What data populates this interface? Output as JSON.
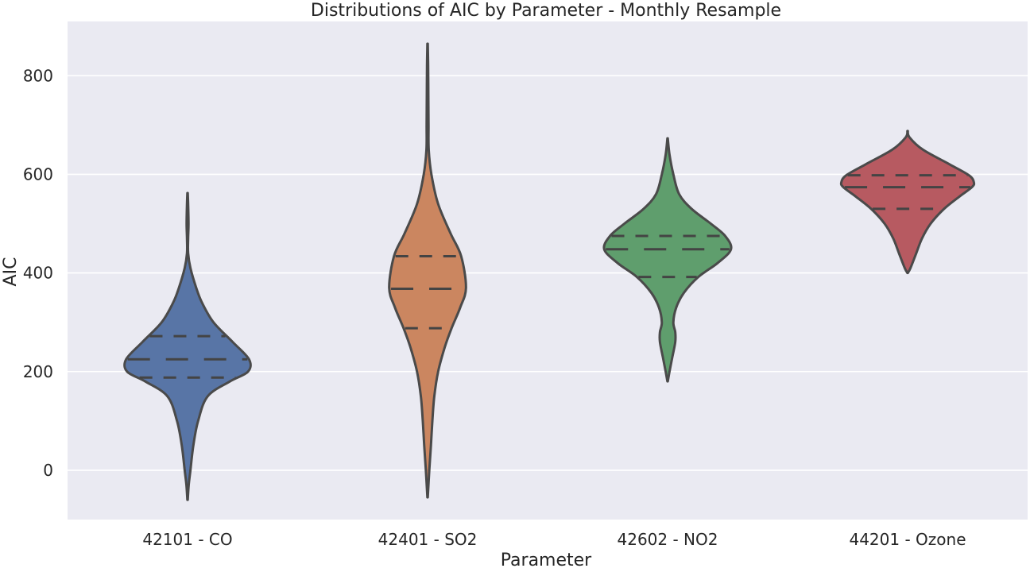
{
  "chart_data": {
    "type": "violin",
    "title": "Distributions of AIC by Parameter - Monthly Resample",
    "xlabel": "Parameter",
    "ylabel": "AIC",
    "ylim": [
      -100,
      910
    ],
    "yticks": [
      0,
      200,
      400,
      600,
      800
    ],
    "grid": true,
    "categories": [
      "42101 - CO",
      "42401 - SO2",
      "42602 - NO2",
      "44201 - Ozone"
    ],
    "colors": [
      "#5875a6",
      "#cb8660",
      "#5f9e6d",
      "#b75a61"
    ],
    "series": [
      {
        "quartiles": [
          188,
          225,
          272
        ],
        "min": -60,
        "max": 562,
        "profile": [
          [
            562,
            0.002
          ],
          [
            540,
            0.006
          ],
          [
            500,
            0.01
          ],
          [
            470,
            0.006
          ],
          [
            440,
            0.006
          ],
          [
            410,
            0.03
          ],
          [
            370,
            0.09
          ],
          [
            340,
            0.15
          ],
          [
            300,
            0.27
          ],
          [
            260,
            0.47
          ],
          [
            225,
            0.64
          ],
          [
            200,
            0.63
          ],
          [
            180,
            0.44
          ],
          [
            150,
            0.21
          ],
          [
            100,
            0.11
          ],
          [
            50,
            0.06
          ],
          [
            0,
            0.03
          ],
          [
            -30,
            0.012
          ],
          [
            -60,
            0.002
          ]
        ]
      },
      {
        "quartiles": [
          288,
          368,
          434
        ],
        "min": -55,
        "max": 865,
        "profile": [
          [
            865,
            0.002
          ],
          [
            820,
            0.006
          ],
          [
            760,
            0.008
          ],
          [
            700,
            0.01
          ],
          [
            650,
            0.012
          ],
          [
            600,
            0.04
          ],
          [
            540,
            0.11
          ],
          [
            480,
            0.24
          ],
          [
            434,
            0.35
          ],
          [
            370,
            0.4
          ],
          [
            330,
            0.34
          ],
          [
            288,
            0.25
          ],
          [
            250,
            0.18
          ],
          [
            200,
            0.11
          ],
          [
            150,
            0.07
          ],
          [
            100,
            0.05
          ],
          [
            50,
            0.035
          ],
          [
            0,
            0.018
          ],
          [
            -55,
            0.002
          ]
        ]
      },
      {
        "quartiles": [
          392,
          448,
          475
        ],
        "min": 180,
        "max": 673,
        "profile": [
          [
            673,
            0.002
          ],
          [
            640,
            0.02
          ],
          [
            600,
            0.06
          ],
          [
            560,
            0.12
          ],
          [
            530,
            0.25
          ],
          [
            500,
            0.45
          ],
          [
            475,
            0.6
          ],
          [
            448,
            0.66
          ],
          [
            420,
            0.52
          ],
          [
            392,
            0.32
          ],
          [
            360,
            0.17
          ],
          [
            330,
            0.09
          ],
          [
            300,
            0.06
          ],
          [
            280,
            0.08
          ],
          [
            260,
            0.08
          ],
          [
            230,
            0.05
          ],
          [
            200,
            0.02
          ],
          [
            180,
            0.002
          ]
        ]
      },
      {
        "quartiles": [
          530,
          574,
          598
        ],
        "min": 400,
        "max": 688,
        "profile": [
          [
            688,
            0.002
          ],
          [
            675,
            0.02
          ],
          [
            650,
            0.16
          ],
          [
            620,
            0.44
          ],
          [
            598,
            0.64
          ],
          [
            584,
            0.69
          ],
          [
            574,
            0.67
          ],
          [
            555,
            0.54
          ],
          [
            530,
            0.38
          ],
          [
            500,
            0.24
          ],
          [
            470,
            0.15
          ],
          [
            440,
            0.09
          ],
          [
            410,
            0.03
          ],
          [
            400,
            0.002
          ]
        ]
      }
    ]
  }
}
